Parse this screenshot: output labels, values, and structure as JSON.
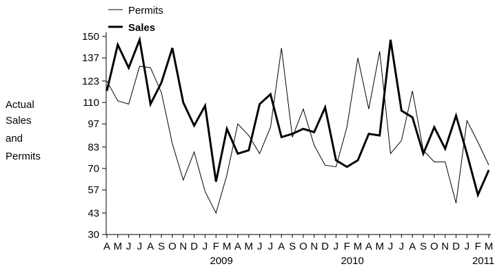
{
  "chart_data": {
    "type": "line",
    "title": "",
    "xlabel": "",
    "ylabel_lines": [
      "Actual",
      "Sales",
      "and",
      "Permits"
    ],
    "y_ticks": [
      "150",
      "137",
      "123",
      "110",
      "97",
      "83",
      "70",
      "57",
      "43",
      "30"
    ],
    "ylim": [
      30,
      150
    ],
    "grid": false,
    "legend_position": "top-left",
    "categories": [
      "A",
      "M",
      "J",
      "J",
      "A",
      "S",
      "O",
      "N",
      "D",
      "J",
      "F",
      "M",
      "A",
      "M",
      "J",
      "J",
      "A",
      "S",
      "O",
      "N",
      "D",
      "J",
      "F",
      "M",
      "A",
      "M",
      "J",
      "J",
      "A",
      "S",
      "O",
      "N",
      "D",
      "J",
      "F",
      "M"
    ],
    "year_labels": [
      {
        "label": "2009",
        "index": 10.5
      },
      {
        "label": "2010",
        "index": 22.5
      },
      {
        "label": "2011",
        "index": 34.5
      }
    ],
    "series": [
      {
        "name": "Permits",
        "style": "thin",
        "color": "#000000",
        "values": [
          123,
          111,
          109,
          132,
          131,
          116,
          85,
          63,
          80,
          56,
          43,
          66,
          97,
          90,
          79,
          95,
          143,
          89,
          106,
          84,
          72,
          71,
          95,
          137,
          106,
          141,
          79,
          87,
          117,
          81,
          74,
          74,
          49,
          99,
          86,
          72
        ]
      },
      {
        "name": "Sales",
        "style": "thick",
        "color": "#000000",
        "values": [
          117,
          145,
          131,
          148,
          109,
          122,
          143,
          110,
          96,
          108,
          62,
          94,
          79,
          81,
          109,
          115,
          89,
          91,
          94,
          92,
          107,
          75,
          71,
          75,
          91,
          90,
          148,
          105,
          101,
          79,
          95,
          82,
          102,
          79,
          54,
          69
        ]
      }
    ]
  }
}
